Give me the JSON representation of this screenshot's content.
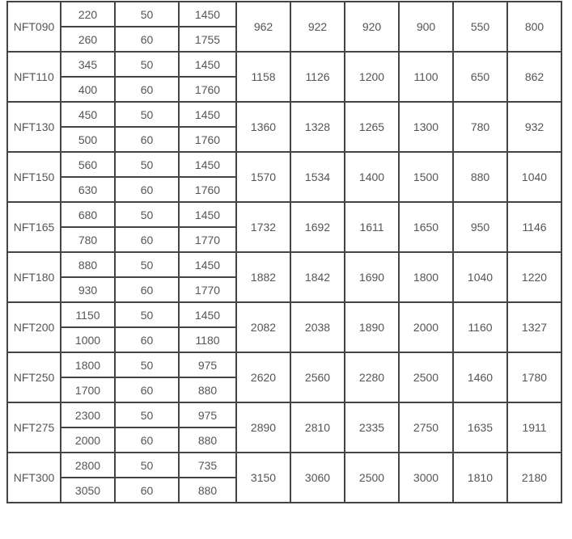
{
  "table": {
    "rows": [
      {
        "model": "NFT090",
        "sub": [
          [
            "220",
            "50",
            "1450"
          ],
          [
            "260",
            "60",
            "1755"
          ]
        ],
        "values": [
          "962",
          "922",
          "920",
          "900",
          "550",
          "800"
        ]
      },
      {
        "model": "NFT110",
        "sub": [
          [
            "345",
            "50",
            "1450"
          ],
          [
            "400",
            "60",
            "1760"
          ]
        ],
        "values": [
          "1158",
          "1126",
          "1200",
          "1100",
          "650",
          "862"
        ]
      },
      {
        "model": "NFT130",
        "sub": [
          [
            "450",
            "50",
            "1450"
          ],
          [
            "500",
            "60",
            "1760"
          ]
        ],
        "values": [
          "1360",
          "1328",
          "1265",
          "1300",
          "780",
          "932"
        ]
      },
      {
        "model": "NFT150",
        "sub": [
          [
            "560",
            "50",
            "1450"
          ],
          [
            "630",
            "60",
            "1760"
          ]
        ],
        "values": [
          "1570",
          "1534",
          "1400",
          "1500",
          "880",
          "1040"
        ]
      },
      {
        "model": "NFT165",
        "sub": [
          [
            "680",
            "50",
            "1450"
          ],
          [
            "780",
            "60",
            "1770"
          ]
        ],
        "values": [
          "1732",
          "1692",
          "1611",
          "1650",
          "950",
          "1146"
        ]
      },
      {
        "model": "NFT180",
        "sub": [
          [
            "880",
            "50",
            "1450"
          ],
          [
            "930",
            "60",
            "1770"
          ]
        ],
        "values": [
          "1882",
          "1842",
          "1690",
          "1800",
          "1040",
          "1220"
        ]
      },
      {
        "model": "NFT200",
        "sub": [
          [
            "1150",
            "50",
            "1450"
          ],
          [
            "1000",
            "60",
            "1180"
          ]
        ],
        "values": [
          "2082",
          "2038",
          "1890",
          "2000",
          "1160",
          "1327"
        ]
      },
      {
        "model": "NFT250",
        "sub": [
          [
            "1800",
            "50",
            "975"
          ],
          [
            "1700",
            "60",
            "880"
          ]
        ],
        "values": [
          "2620",
          "2560",
          "2280",
          "2500",
          "1460",
          "1780"
        ]
      },
      {
        "model": "NFT275",
        "sub": [
          [
            "2300",
            "50",
            "975"
          ],
          [
            "2000",
            "60",
            "880"
          ]
        ],
        "values": [
          "2890",
          "2810",
          "2335",
          "2750",
          "1635",
          "1911"
        ]
      },
      {
        "model": "NFT300",
        "sub": [
          [
            "2800",
            "50",
            "735"
          ],
          [
            "3050",
            "60",
            "880"
          ]
        ],
        "values": [
          "3150",
          "3060",
          "2500",
          "3000",
          "1810",
          "2180"
        ]
      }
    ]
  }
}
